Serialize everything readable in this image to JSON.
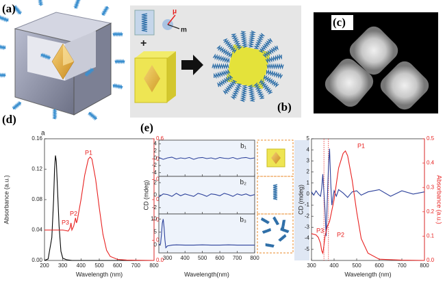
{
  "panel_labels": [
    "(a)",
    "(b)",
    "(c)",
    "(d)",
    "(e)"
  ],
  "illustration_text": [
    "μ",
    "m",
    "+"
  ],
  "chart_data": [
    {
      "type": "line",
      "label": "a",
      "xlabel": "Wavelength (nm)",
      "ylabel": "Absorbance (a.u.)",
      "xlim": [
        200,
        800
      ],
      "xticks": [
        200,
        300,
        400,
        500,
        600,
        700,
        800
      ],
      "ylim": [
        0,
        0.16
      ],
      "yticks": [
        {
          "value": 0,
          "label": "0.00"
        },
        0.04,
        0.08,
        0.12,
        0.16
      ],
      "y2lim": [
        0,
        0.6
      ],
      "y2ticks": [
        {
          "value": 0,
          "label": "0.0"
        },
        0.1,
        0.2,
        0.3,
        0.4,
        0.5,
        0.6
      ],
      "annotations": [
        "P1",
        "P2",
        "P3"
      ],
      "series": [
        {
          "color": "#000000",
          "x": [
            200,
            220,
            240,
            250,
            255,
            260,
            265,
            270,
            280,
            290,
            300,
            320,
            350,
            400,
            800
          ],
          "values": [
            0.0,
            0.002,
            0.03,
            0.08,
            0.12,
            0.138,
            0.13,
            0.1,
            0.045,
            0.012,
            0.003,
            0.001,
            0,
            0,
            0
          ]
        },
        {
          "color": "#e8201f",
          "axis": "y2",
          "x": [
            200,
            250,
            300,
            330,
            340,
            345,
            350,
            360,
            370,
            375,
            380,
            400,
            420,
            440,
            450,
            460,
            480,
            500,
            520,
            540,
            560,
            600,
            650,
            700,
            800
          ],
          "values": [
            0.15,
            0.15,
            0.15,
            0.145,
            0.16,
            0.185,
            0.15,
            0.17,
            0.21,
            0.185,
            0.2,
            0.3,
            0.42,
            0.5,
            0.51,
            0.5,
            0.4,
            0.26,
            0.13,
            0.05,
            0.02,
            0.005,
            0.002,
            0.001,
            0
          ]
        }
      ]
    },
    {
      "type": "line",
      "label": "b₁",
      "xlim": [
        250,
        800
      ],
      "xticks": [
        300,
        400,
        500,
        600,
        700,
        800
      ],
      "ylim": [
        -5,
        5
      ],
      "yticks": [
        -4,
        -2,
        0,
        2,
        4
      ],
      "series": [
        {
          "color": "#2a3f9a",
          "x": [
            250,
            275,
            300,
            325,
            350,
            375,
            400,
            425,
            450,
            475,
            500,
            525,
            550,
            575,
            600,
            625,
            650,
            675,
            700,
            725,
            750,
            775,
            800
          ],
          "values": [
            0.2,
            -0.3,
            0.1,
            0.3,
            -0.2,
            0.1,
            -0.1,
            0.2,
            -0.3,
            0.1,
            0.2,
            -0.1,
            0.1,
            -0.2,
            0.2,
            0,
            -0.1,
            0.2,
            -0.2,
            0.1,
            0.2,
            -0.1,
            0.1
          ]
        }
      ]
    },
    {
      "type": "line",
      "label": "b₂",
      "ylabel": "CD (mdeg)",
      "xlim": [
        250,
        800
      ],
      "xticks": [
        300,
        400,
        500,
        600,
        700,
        800
      ],
      "ylim": [
        -3,
        3
      ],
      "yticks": [
        -2,
        0,
        2
      ],
      "series": [
        {
          "color": "#2a3f9a",
          "x": [
            250,
            275,
            300,
            325,
            350,
            375,
            400,
            425,
            450,
            475,
            500,
            525,
            550,
            575,
            600,
            625,
            650,
            675,
            700,
            725,
            750,
            775,
            800
          ],
          "values": [
            -0.3,
            0.2,
            0.1,
            -0.2,
            0.3,
            -0.1,
            0.2,
            0,
            -0.2,
            0.3,
            0.1,
            -0.2,
            0.2,
            0.1,
            -0.1,
            0.3,
            0.1,
            -0.2,
            0.2,
            0,
            0.2,
            -0.1,
            0.1
          ]
        }
      ]
    },
    {
      "type": "line",
      "label": "b₃",
      "xlabel": "Wavelength(nm)",
      "xlim": [
        250,
        800
      ],
      "xticks": [
        300,
        400,
        500,
        600,
        700,
        800
      ],
      "ylim": [
        -3,
        12
      ],
      "yticks": [
        0,
        5,
        10
      ],
      "series": [
        {
          "color": "#2a3f9a",
          "x": [
            250,
            260,
            265,
            270,
            275,
            280,
            285,
            290,
            300,
            325,
            350,
            400,
            450,
            500,
            550,
            600,
            650,
            700,
            750,
            800
          ],
          "values": [
            0,
            0.5,
            4,
            8.5,
            10,
            7,
            2,
            -1,
            -0.3,
            0,
            0.1,
            0,
            0,
            0.1,
            0,
            0,
            0.1,
            0,
            0,
            0
          ]
        }
      ]
    },
    {
      "type": "line",
      "ylabel": "CD (mdeg)",
      "y2label": "Absorbance (a.u.)",
      "xlabel": "Wavelength (nm)",
      "xlim": [
        300,
        800
      ],
      "xticks": [
        300,
        400,
        500,
        600,
        700,
        800
      ],
      "ylim": [
        -6,
        5
      ],
      "yticks": [
        -5,
        -4,
        -3,
        -2,
        -1,
        0,
        1,
        2,
        3,
        4,
        5
      ],
      "y2lim": [
        0,
        0.5
      ],
      "y2ticks": [
        {
          "value": 0,
          "label": "0.0"
        },
        0.1,
        0.2,
        0.3,
        0.4,
        0.5
      ],
      "reference_lines": [
        355,
        375
      ],
      "annotations": [
        "P1",
        "P2",
        "P3"
      ],
      "series": [
        {
          "color": "#2a3f9a",
          "x": [
            300,
            310,
            320,
            330,
            340,
            345,
            350,
            355,
            360,
            365,
            370,
            375,
            380,
            385,
            390,
            395,
            400,
            410,
            420,
            440,
            460,
            480,
            500,
            520,
            550,
            600,
            650,
            700,
            750,
            800
          ],
          "values": [
            0.2,
            -0.1,
            0.3,
            0,
            -0.2,
            0.5,
            1.8,
            0.2,
            -1.5,
            -3.8,
            -0.5,
            2.5,
            4.1,
            1,
            -1,
            -0.3,
            0.3,
            -0.2,
            0.4,
            0.1,
            -0.3,
            0.2,
            0.3,
            -0.1,
            0.2,
            0.4,
            -0.2,
            0.3,
            0,
            0.2
          ]
        },
        {
          "color": "#e8201f",
          "axis": "y2",
          "x": [
            300,
            320,
            330,
            340,
            345,
            350,
            355,
            360,
            370,
            380,
            400,
            420,
            440,
            450,
            460,
            480,
            500,
            520,
            550,
            600,
            700,
            800
          ],
          "values": [
            0.11,
            0.105,
            0.095,
            0.07,
            0.04,
            0.03,
            0.06,
            0.1,
            0.14,
            0.16,
            0.25,
            0.38,
            0.44,
            0.45,
            0.43,
            0.33,
            0.2,
            0.09,
            0.03,
            0.005,
            0.001,
            0
          ]
        }
      ]
    }
  ]
}
